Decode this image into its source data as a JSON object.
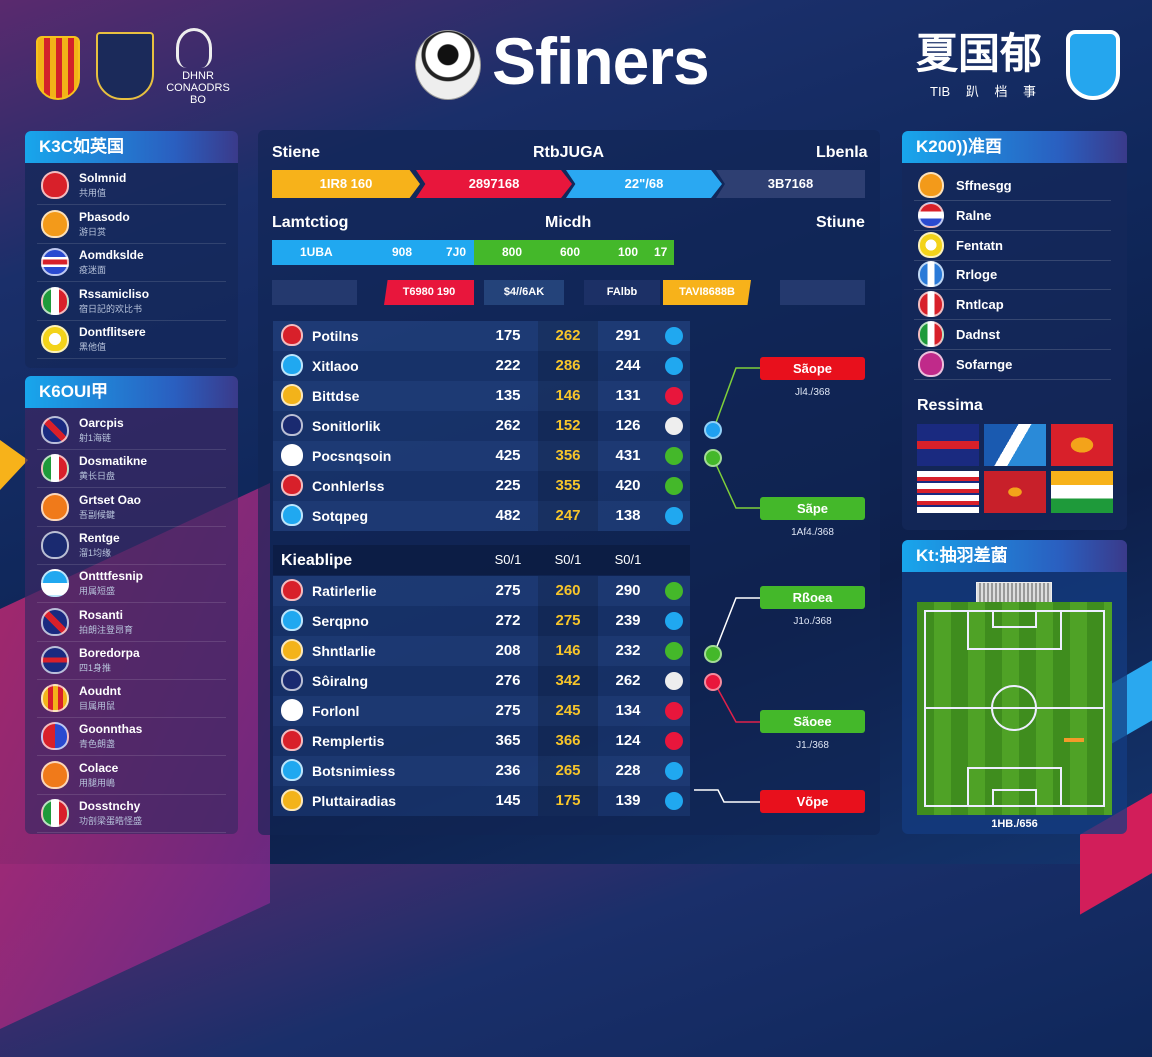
{
  "header": {
    "title": "Sfiners",
    "left_logo_text": "DHNR CONAODRS BO",
    "right_title": "夏国郁",
    "right_subtitle": "TIB 趴 档 事"
  },
  "colors": {
    "yellow": "#f7b21a",
    "red": "#e8163c",
    "blue": "#20a8f0",
    "green": "#44b82a",
    "navy": "#2a3a6e"
  },
  "left_panel_1": {
    "title": "K3C如英国",
    "items": [
      {
        "name": "Solmnid",
        "sub": "共用值",
        "icon": "red-crest"
      },
      {
        "name": "Pbasodo",
        "sub": "游日赏",
        "icon": "orange-crest"
      },
      {
        "name": "Aomdkslde",
        "sub": "疫迷面",
        "icon": "red-blue-stripe-crest"
      },
      {
        "name": "Rssamicliso",
        "sub": "宿日記的欢比书",
        "icon": "italy-flag"
      },
      {
        "name": "Dontflitsere",
        "sub": "黑他值",
        "icon": "yellow-ring-crest"
      }
    ]
  },
  "left_panel_2": {
    "title": "K6OUI甲",
    "items": [
      {
        "name": "Oarcpis",
        "sub": "射1海链",
        "icon": "union-jack-crest"
      },
      {
        "name": "Dosmatikne",
        "sub": "黄长日盘",
        "icon": "italy-flag"
      },
      {
        "name": "Grtset Oao",
        "sub": "吾副候鍵",
        "icon": "orange-shield"
      },
      {
        "name": "Rentge",
        "sub": "溜1均缘",
        "icon": "navy-shield"
      },
      {
        "name": "Ontttfesnip",
        "sub": "用属短盛",
        "icon": "blue-white-crest"
      },
      {
        "name": "Rosanti",
        "sub": "拍朗注登昂育",
        "icon": "union-jack-crest"
      },
      {
        "name": "Boredorpa",
        "sub": "四1身推",
        "icon": "union-jack"
      },
      {
        "name": "Aoudnt",
        "sub": "目属用鼠",
        "icon": "red-yellow-crest"
      },
      {
        "name": "Goonnthas",
        "sub": "青色朗盏",
        "icon": "red-blue-crest"
      },
      {
        "name": "Colace",
        "sub": "用腿用嶋",
        "icon": "orange-shield"
      },
      {
        "name": "Dosstnchy",
        "sub": "功剖梁蛋皓怪盛",
        "icon": "italy-flag"
      }
    ]
  },
  "center": {
    "row1_labels": [
      "Stiene",
      "RtbJUGA",
      "Lbenla"
    ],
    "stage_bar": [
      "1IR8 160",
      "2897168",
      "22\"/68",
      "3B7168"
    ],
    "row2_labels": [
      "Lamtctiog",
      "Micdh",
      "Stiune"
    ],
    "progress_bar": [
      "1UBA",
      "908",
      "7J0",
      "800",
      "600",
      "100",
      "17"
    ],
    "chips": [
      "T6980 190",
      "$4//6AK",
      "FAlbb",
      "TAVI8688B"
    ],
    "table1": [
      {
        "name": "Potilns",
        "a": "175",
        "b": "262",
        "c": "291",
        "icon": "blue"
      },
      {
        "name": "Xitlaoo",
        "a": "222",
        "b": "286",
        "c": "244",
        "icon": "blue"
      },
      {
        "name": "Bittdse",
        "a": "135",
        "b": "146",
        "c": "131",
        "icon": "red"
      },
      {
        "name": "Sonitlorlik",
        "a": "262",
        "b": "152",
        "c": "126",
        "icon": "white"
      },
      {
        "name": "Pocsnqsoin",
        "a": "425",
        "b": "356",
        "c": "431",
        "icon": "green"
      },
      {
        "name": "Conhlerlss",
        "a": "225",
        "b": "355",
        "c": "420",
        "icon": "green"
      },
      {
        "name": "Sotqpeg",
        "a": "482",
        "b": "247",
        "c": "138",
        "icon": "blue"
      }
    ],
    "table2_header": {
      "title": "Kieablipe",
      "cols": [
        "S0/1",
        "S0/1",
        "S0/1"
      ]
    },
    "table2": [
      {
        "name": "Ratirlerlie",
        "a": "275",
        "b": "260",
        "c": "290",
        "icon": "green"
      },
      {
        "name": "Serqpno",
        "a": "272",
        "b": "275",
        "c": "239",
        "icon": "blue"
      },
      {
        "name": "Shntlarlie",
        "a": "208",
        "b": "146",
        "c": "232",
        "icon": "green"
      },
      {
        "name": "Sôiralng",
        "a": "276",
        "b": "342",
        "c": "262",
        "icon": "white"
      },
      {
        "name": "Forlonl",
        "a": "275",
        "b": "245",
        "c": "134",
        "icon": "red"
      },
      {
        "name": "Remplertis",
        "a": "365",
        "b": "366",
        "c": "124",
        "icon": "red"
      },
      {
        "name": "Botsnimiess",
        "a": "236",
        "b": "265",
        "c": "228",
        "icon": "blue"
      },
      {
        "name": "Pluttairadias",
        "a": "145",
        "b": "175",
        "c": "139",
        "icon": "blue"
      }
    ]
  },
  "bracket": [
    {
      "label": "Sãope",
      "sub": "Jl4./368",
      "color": "red"
    },
    {
      "label": "Sãpe",
      "sub": "1Af4./368",
      "color": "green"
    },
    {
      "label": "Rßoea",
      "sub": "J1o./368",
      "color": "green"
    },
    {
      "label": "Sãoee",
      "sub": "J1./368",
      "color": "green"
    },
    {
      "label": "Võpe",
      "sub": "",
      "color": "red"
    }
  ],
  "right_panel_1": {
    "title": "K200))准酉",
    "items": [
      {
        "name": "Sffnesgg",
        "icon": "orange-crest"
      },
      {
        "name": "Ralne",
        "icon": "paraguay-crest"
      },
      {
        "name": "Fentatn",
        "icon": "yellow-ring-crest"
      },
      {
        "name": "Rrloge",
        "icon": "blue-white-flag"
      },
      {
        "name": "Rntlcap",
        "icon": "red-white-flag"
      },
      {
        "name": "Dadnst",
        "icon": "italy-flag"
      },
      {
        "name": "Sofarnge",
        "icon": "magenta-crest"
      }
    ],
    "flags_title": "Ressima",
    "flags": [
      "union-jack",
      "scotland-chevron",
      "red-emblem",
      "greece-stripes",
      "red-dragon",
      "india"
    ]
  },
  "right_panel_2": {
    "title": "Kt:抽羽差菌",
    "caption": "1HB./656"
  }
}
